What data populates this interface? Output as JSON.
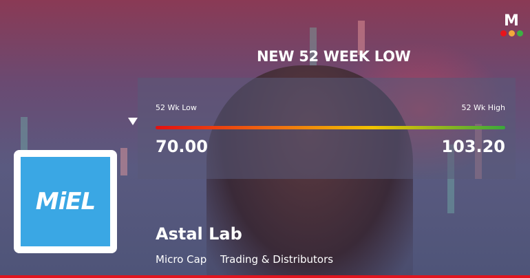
{
  "headline": "NEW 52 WEEK LOW",
  "range": {
    "low_label": "52 Wk Low",
    "high_label": "52 Wk High",
    "low_value": "70.00",
    "high_value": "103.20",
    "current_position_pct": 0
  },
  "company": {
    "name": "Astal Lab",
    "cap": "Micro Cap",
    "sector": "Trading & Distributors",
    "logo_text": "MiEL",
    "logo_color": "#3aa7e4"
  },
  "brand": {
    "logo_text": "M",
    "dots": [
      "#e8141c",
      "#f2a93b",
      "#3cb043"
    ]
  },
  "colors": {
    "accent": "#e1141e"
  }
}
